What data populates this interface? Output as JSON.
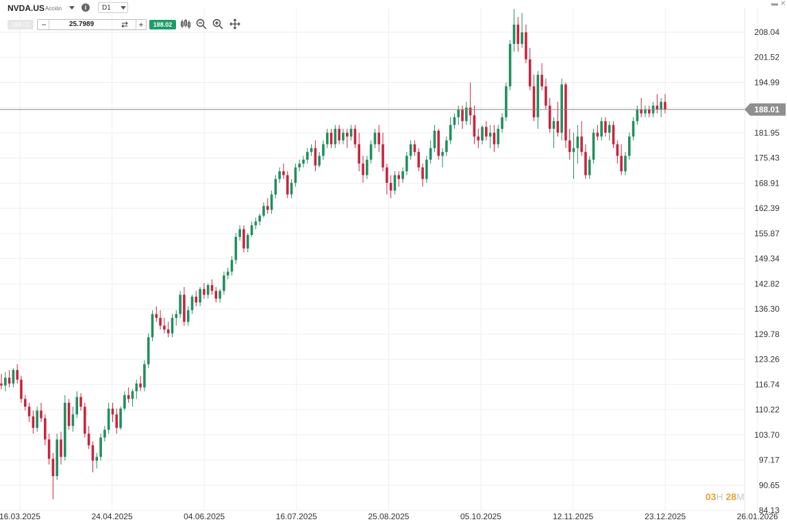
{
  "header": {
    "symbol": "NVDA.US",
    "symbol_type": "Acción",
    "timeframe": "D1",
    "bid": "188.01",
    "quantity": "25.7989",
    "ask": "188.02"
  },
  "window": {
    "minimize": "▬",
    "close": "✕"
  },
  "countdown": {
    "hours": "03",
    "hours_unit": "H",
    "minutes": "28",
    "minutes_unit": "M"
  },
  "colors": {
    "up": "#1f8f5f",
    "down": "#c8243d",
    "price_line": "#888888",
    "grid": "#eeeeee",
    "label_bg": "#8f8f8f"
  },
  "icons": [
    "chart-type-icon",
    "zoom-out-icon",
    "zoom-in-icon",
    "move-icon",
    "swap-icon",
    "info-icon"
  ],
  "chart_data": {
    "type": "candlestick",
    "title": "",
    "xlabel": "",
    "ylabel": "",
    "ylim": [
      84.13,
      213.5
    ],
    "grid": true,
    "y_ticks": [
      208.04,
      201.52,
      194.99,
      188.47,
      181.95,
      175.43,
      168.91,
      162.39,
      155.87,
      149.34,
      142.82,
      136.3,
      129.78,
      123.26,
      116.74,
      110.22,
      103.7,
      97.17,
      90.65,
      84.13
    ],
    "y_tick_labels": [
      "208.04",
      "201.52",
      "194.99",
      "",
      "181.95",
      "175.43",
      "168.91",
      "162.39",
      "155.87",
      "149.34",
      "142.82",
      "136.30",
      "129.78",
      "123.26",
      "116.74",
      "110.22",
      "103.70",
      "97.17",
      "90.65",
      "84.13"
    ],
    "x_tick_labels": [
      "16.03.2025",
      "24.04.2025",
      "04.06.2025",
      "16.07.2025",
      "25.08.2025",
      "05.10.2025",
      "12.11.2025",
      "23.12.2025",
      "26.01.2026"
    ],
    "current_price": 188.01,
    "current_price_label": "188.01",
    "ohlc": [
      [
        117,
        119.5,
        115.5,
        116.5
      ],
      [
        116.5,
        120,
        115,
        118.5
      ],
      [
        118.5,
        120.5,
        116,
        117
      ],
      [
        117,
        121,
        116,
        120.5
      ],
      [
        120.5,
        122,
        117,
        118
      ],
      [
        118,
        119,
        112,
        113
      ],
      [
        113,
        114,
        110,
        111
      ],
      [
        111,
        112,
        107,
        108.5
      ],
      [
        108.5,
        110,
        104,
        105.5
      ],
      [
        105.5,
        111,
        104.5,
        110
      ],
      [
        110,
        112,
        107,
        108
      ],
      [
        108,
        109,
        101,
        102.5
      ],
      [
        102.5,
        104,
        96,
        97.5
      ],
      [
        97.5,
        99,
        87,
        93
      ],
      [
        93,
        104,
        92,
        102.5
      ],
      [
        102.5,
        104.5,
        96,
        98
      ],
      [
        98,
        114,
        97,
        112
      ],
      [
        112,
        113,
        105,
        106
      ],
      [
        106,
        111,
        104.5,
        109
      ],
      [
        109,
        115,
        108,
        113.5
      ],
      [
        113.5,
        114.5,
        110,
        111
      ],
      [
        111,
        112,
        103,
        104
      ],
      [
        104,
        106,
        100,
        101
      ],
      [
        101,
        102,
        94,
        97
      ],
      [
        97,
        99,
        95,
        98
      ],
      [
        98,
        104,
        97,
        103
      ],
      [
        103,
        106,
        102,
        105
      ],
      [
        105,
        112,
        104,
        110.5
      ],
      [
        110.5,
        112,
        107,
        109
      ],
      [
        109,
        110.5,
        104,
        105.5
      ],
      [
        105.5,
        111,
        105,
        110.5
      ],
      [
        110.5,
        115,
        110,
        114
      ],
      [
        114,
        116,
        112,
        113
      ],
      [
        113,
        115.5,
        111,
        115
      ],
      [
        115,
        118,
        113,
        117
      ],
      [
        117,
        119,
        115,
        116
      ],
      [
        116,
        123,
        115,
        122
      ],
      [
        122,
        130,
        121,
        129
      ],
      [
        129,
        136,
        128,
        135
      ],
      [
        135,
        137,
        133,
        134
      ],
      [
        134,
        136,
        131,
        132
      ],
      [
        132,
        134,
        130,
        131
      ],
      [
        131,
        133,
        129,
        130
      ],
      [
        130,
        135,
        129,
        134
      ],
      [
        134,
        136,
        132,
        135
      ],
      [
        135,
        141,
        134,
        140
      ],
      [
        140,
        142,
        132,
        133
      ],
      [
        133,
        137,
        132,
        136
      ],
      [
        136,
        140,
        135,
        139.5
      ],
      [
        139.5,
        141,
        137,
        138
      ],
      [
        138,
        142,
        137,
        141.5
      ],
      [
        141.5,
        143,
        139,
        140
      ],
      [
        140,
        143,
        139,
        142.5
      ],
      [
        142.5,
        144,
        140,
        141
      ],
      [
        141,
        142,
        138,
        139
      ],
      [
        139,
        141.5,
        138,
        141
      ],
      [
        141,
        146,
        140,
        145
      ],
      [
        145,
        147,
        144,
        146
      ],
      [
        146,
        150,
        145,
        149
      ],
      [
        149,
        156,
        148,
        155
      ],
      [
        155,
        158,
        154,
        157
      ],
      [
        157,
        158,
        151,
        152
      ],
      [
        152,
        156,
        151,
        155.5
      ],
      [
        155.5,
        159,
        155,
        158
      ],
      [
        158,
        160,
        157,
        159
      ],
      [
        159,
        161,
        158,
        160.5
      ],
      [
        160.5,
        164,
        160,
        163
      ],
      [
        163,
        165,
        161,
        162
      ],
      [
        162,
        167,
        161,
        166
      ],
      [
        166,
        171,
        165,
        170
      ],
      [
        170,
        173,
        169,
        172
      ],
      [
        172,
        174,
        170,
        171
      ],
      [
        171,
        172,
        165,
        166
      ],
      [
        166,
        170,
        165,
        169
      ],
      [
        169,
        174,
        168,
        173
      ],
      [
        173,
        175,
        172,
        174
      ],
      [
        174,
        176,
        173,
        175
      ],
      [
        175,
        178,
        174,
        177
      ],
      [
        177,
        179,
        176,
        178
      ],
      [
        178,
        180,
        172,
        173.5
      ],
      [
        173.5,
        177,
        173,
        176
      ],
      [
        176,
        180,
        175,
        179
      ],
      [
        179,
        183,
        178,
        182
      ],
      [
        182,
        183,
        178,
        179
      ],
      [
        179,
        184,
        178,
        183
      ],
      [
        183,
        184,
        179,
        180
      ],
      [
        180,
        183,
        179,
        182
      ],
      [
        182,
        183,
        178,
        181
      ],
      [
        181,
        184,
        180,
        183
      ],
      [
        183,
        184,
        178,
        179
      ],
      [
        179,
        182,
        172,
        174
      ],
      [
        174,
        176,
        169,
        171
      ],
      [
        171,
        176,
        170,
        175
      ],
      [
        175,
        180,
        174,
        179
      ],
      [
        179,
        183,
        178,
        182
      ],
      [
        182,
        184,
        177,
        179
      ],
      [
        179,
        182,
        172,
        173
      ],
      [
        173,
        174,
        166,
        169
      ],
      [
        169,
        171,
        165,
        167
      ],
      [
        167,
        172,
        166,
        171
      ],
      [
        171,
        172,
        168,
        170
      ],
      [
        170,
        173,
        169,
        172
      ],
      [
        172,
        177,
        171,
        176
      ],
      [
        176,
        180,
        175,
        179
      ],
      [
        179,
        180,
        176,
        177
      ],
      [
        177,
        178,
        172,
        173
      ],
      [
        173,
        174,
        168,
        170
      ],
      [
        170,
        176,
        169,
        175
      ],
      [
        175,
        180,
        174,
        178
      ],
      [
        178,
        184,
        177,
        182.5
      ],
      [
        182.5,
        183,
        175,
        176
      ],
      [
        176,
        178,
        173,
        177
      ],
      [
        177,
        181,
        176,
        180
      ],
      [
        180,
        186,
        179,
        184
      ],
      [
        184,
        187,
        183,
        186
      ],
      [
        186,
        189,
        184,
        188
      ],
      [
        188,
        189,
        183,
        185
      ],
      [
        185,
        190,
        184,
        188.5
      ],
      [
        188.5,
        195,
        184,
        186.5
      ],
      [
        186.5,
        189,
        179,
        181
      ],
      [
        181,
        183,
        178,
        180
      ],
      [
        180,
        184,
        179,
        183.5
      ],
      [
        183.5,
        185,
        180,
        181
      ],
      [
        181,
        184,
        178,
        182
      ],
      [
        182,
        184,
        177,
        179
      ],
      [
        179,
        184,
        178,
        183
      ],
      [
        183,
        187,
        182,
        186
      ],
      [
        186,
        195,
        185,
        194
      ],
      [
        194,
        206,
        193,
        205
      ],
      [
        205,
        214,
        203,
        210
      ],
      [
        210,
        212,
        203,
        205
      ],
      [
        205,
        213,
        204,
        208
      ],
      [
        208,
        210,
        200,
        201
      ],
      [
        201,
        204,
        193,
        194
      ],
      [
        194,
        197,
        185,
        186
      ],
      [
        186,
        198,
        183,
        197
      ],
      [
        197,
        200,
        193,
        194
      ],
      [
        194,
        196,
        188,
        189
      ],
      [
        189,
        191,
        182,
        183
      ],
      [
        183,
        186,
        178,
        185
      ],
      [
        185,
        190,
        181,
        182
      ],
      [
        182,
        196,
        180,
        194.5
      ],
      [
        194.5,
        195,
        178,
        180
      ],
      [
        180,
        183,
        175,
        177
      ],
      [
        177,
        182,
        170,
        178
      ],
      [
        178,
        184,
        174,
        181
      ],
      [
        181,
        185,
        176,
        177
      ],
      [
        177,
        179,
        170,
        171
      ],
      [
        171,
        176,
        170,
        175
      ],
      [
        175,
        183,
        174,
        182
      ],
      [
        182,
        184,
        180,
        181
      ],
      [
        181,
        186,
        180,
        185
      ],
      [
        185,
        186,
        181,
        182
      ],
      [
        182,
        185,
        180,
        184
      ],
      [
        184,
        185,
        178,
        179
      ],
      [
        179,
        180,
        174,
        176
      ],
      [
        176,
        179,
        171,
        172
      ],
      [
        172,
        177,
        171,
        176
      ],
      [
        176,
        182,
        175,
        181
      ],
      [
        181,
        186,
        180,
        185
      ],
      [
        185,
        189,
        184,
        188
      ],
      [
        188,
        191,
        186,
        187
      ],
      [
        187,
        189,
        186,
        188
      ],
      [
        188,
        189,
        186,
        187
      ],
      [
        187,
        190,
        186,
        189
      ],
      [
        189,
        192,
        187,
        188
      ],
      [
        188,
        191,
        186,
        190
      ],
      [
        190,
        192,
        187,
        188
      ]
    ]
  }
}
